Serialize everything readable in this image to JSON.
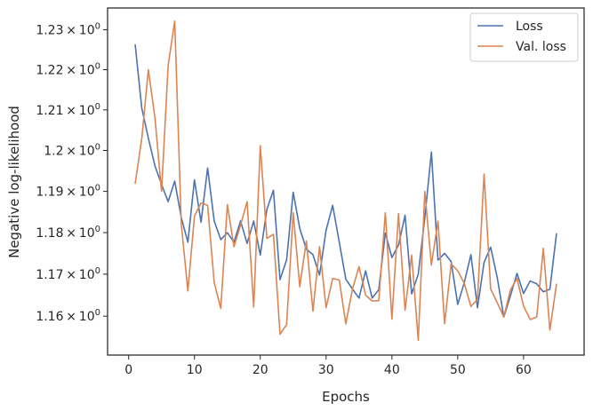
{
  "chart_data": {
    "type": "line",
    "title": "",
    "xlabel": "Epochs",
    "ylabel": "Negative log-likelihood",
    "xlim": [
      -3.2,
      69.2
    ],
    "ylim": [
      1.1508,
      1.2355
    ],
    "y_scale": "log",
    "grid": false,
    "legend_position": "top-right",
    "x_ticks": [
      0,
      10,
      20,
      30,
      40,
      50,
      60
    ],
    "y_ticks": [
      1.16,
      1.17,
      1.18,
      1.19,
      1.2,
      1.21,
      1.22,
      1.23
    ],
    "y_tick_labels": [
      {
        "mantissa": "1.16",
        "base": "10",
        "exp": "0"
      },
      {
        "mantissa": "1.17",
        "base": "10",
        "exp": "0"
      },
      {
        "mantissa": "1.18",
        "base": "10",
        "exp": "0"
      },
      {
        "mantissa": "1.19",
        "base": "10",
        "exp": "0"
      },
      {
        "mantissa": "1.2",
        "base": "10",
        "exp": "0"
      },
      {
        "mantissa": "1.21",
        "base": "10",
        "exp": "0"
      },
      {
        "mantissa": "1.22",
        "base": "10",
        "exp": "0"
      },
      {
        "mantissa": "1.23",
        "base": "10",
        "exp": "0"
      }
    ],
    "x": [
      1,
      2,
      3,
      4,
      5,
      6,
      7,
      8,
      9,
      10,
      11,
      12,
      13,
      14,
      15,
      16,
      17,
      18,
      19,
      20,
      21,
      22,
      23,
      24,
      25,
      26,
      27,
      28,
      29,
      30,
      31,
      32,
      33,
      34,
      35,
      36,
      37,
      38,
      39,
      40,
      41,
      42,
      43,
      44,
      45,
      46,
      47,
      48,
      49,
      50,
      51,
      52,
      53,
      54,
      55,
      56,
      57,
      58,
      59,
      60,
      61,
      62,
      63,
      64,
      65
    ],
    "series": [
      {
        "name": "Loss",
        "color": "#4c72b0",
        "values": [
          1.2262,
          1.2104,
          1.203,
          1.1962,
          1.1917,
          1.1875,
          1.1925,
          1.1836,
          1.1777,
          1.1928,
          1.1825,
          1.1957,
          1.1828,
          1.1783,
          1.18,
          1.1777,
          1.1828,
          1.1774,
          1.1828,
          1.1746,
          1.1856,
          1.1903,
          1.1687,
          1.1734,
          1.1898,
          1.181,
          1.176,
          1.1747,
          1.1698,
          1.1806,
          1.1866,
          1.1777,
          1.1688,
          1.1665,
          1.1643,
          1.1708,
          1.1643,
          1.1663,
          1.1799,
          1.174,
          1.177,
          1.1842,
          1.1653,
          1.17,
          1.1836,
          1.1996,
          1.1734,
          1.175,
          1.173,
          1.1628,
          1.168,
          1.1747,
          1.162,
          1.1728,
          1.1765,
          1.1692,
          1.1598,
          1.1648,
          1.1702,
          1.1654,
          1.1684,
          1.1677,
          1.1658,
          1.1664,
          1.1797
        ]
      },
      {
        "name": "Val. loss",
        "color": "#dd8452",
        "values": [
          1.192,
          1.203,
          1.22,
          1.208,
          1.19,
          1.221,
          1.2322,
          1.182,
          1.166,
          1.184,
          1.1872,
          1.1866,
          1.168,
          1.1618,
          1.1868,
          1.1766,
          1.1818,
          1.1875,
          1.1622,
          1.2012,
          1.1786,
          1.1796,
          1.1557,
          1.158,
          1.1848,
          1.167,
          1.178,
          1.1612,
          1.1766,
          1.162,
          1.169,
          1.1686,
          1.1582,
          1.1664,
          1.1718,
          1.165,
          1.1636,
          1.1637,
          1.1848,
          1.1593,
          1.1846,
          1.1614,
          1.1746,
          1.1543,
          1.19,
          1.1722,
          1.1828,
          1.1582,
          1.1725,
          1.1708,
          1.1678,
          1.1623,
          1.164,
          1.1942,
          1.1665,
          1.1632,
          1.1598,
          1.1662,
          1.169,
          1.1624,
          1.1592,
          1.1598,
          1.1762,
          1.1567,
          1.1676
        ]
      }
    ]
  }
}
